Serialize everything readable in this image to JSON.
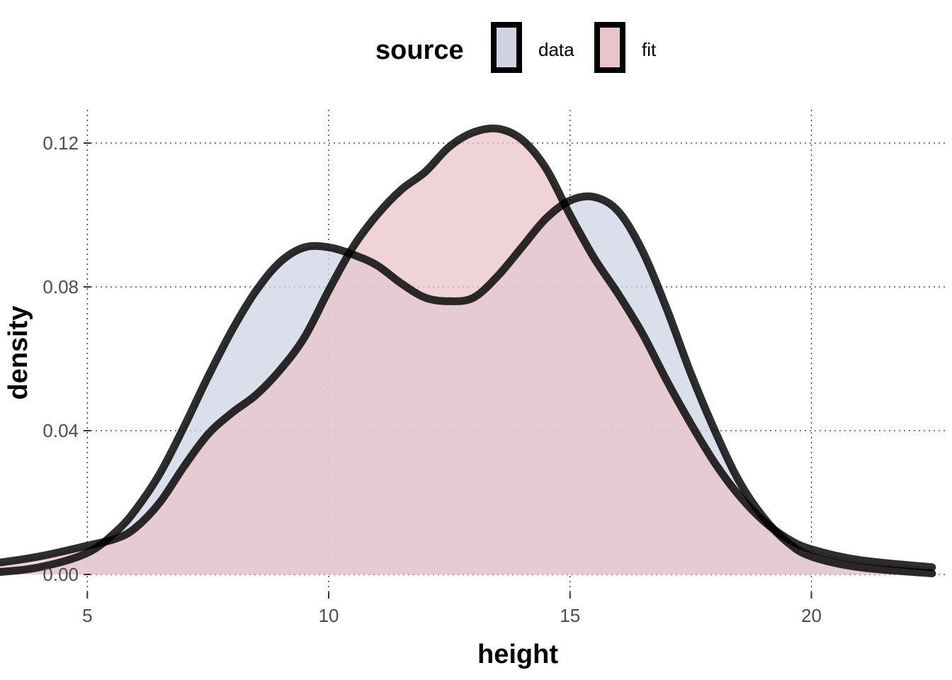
{
  "chart_data": {
    "type": "area",
    "xlabel": "height",
    "ylabel": "density",
    "xlim": [
      2.2,
      22.5
    ],
    "ylim": [
      0,
      0.124
    ],
    "x_ticks": [
      5,
      10,
      15,
      20
    ],
    "x_tick_labels": [
      "5",
      "10",
      "15",
      "20"
    ],
    "y_ticks": [
      0,
      0.04,
      0.08,
      0.12
    ],
    "y_tick_labels": [
      "0.00",
      "0.04",
      "0.08",
      "0.12"
    ],
    "grid": true,
    "legend": {
      "title": "source",
      "placement": "top"
    },
    "series": [
      {
        "name": "data",
        "fill": "#cfd3e4",
        "x": [
          2.2,
          3.0,
          4.0,
          5.0,
          5.6,
          6.0,
          6.5,
          7.0,
          7.5,
          8.0,
          8.5,
          9.0,
          9.5,
          10.0,
          10.5,
          11.0,
          11.5,
          12.0,
          12.5,
          13.0,
          13.5,
          14.0,
          14.5,
          15.0,
          15.5,
          16.0,
          16.5,
          17.0,
          17.5,
          18.0,
          18.5,
          19.0,
          19.5,
          20.0,
          21.0,
          22.5
        ],
        "y": [
          0.0,
          0.0005,
          0.002,
          0.006,
          0.012,
          0.018,
          0.028,
          0.041,
          0.055,
          0.068,
          0.079,
          0.087,
          0.091,
          0.091,
          0.089,
          0.086,
          0.081,
          0.077,
          0.076,
          0.077,
          0.083,
          0.091,
          0.099,
          0.104,
          0.105,
          0.101,
          0.09,
          0.074,
          0.056,
          0.04,
          0.026,
          0.016,
          0.009,
          0.005,
          0.002,
          0.0003
        ]
      },
      {
        "name": "fit",
        "fill": "#e9c4c9",
        "x": [
          2.2,
          3.0,
          4.0,
          5.0,
          5.6,
          6.0,
          6.5,
          7.0,
          7.5,
          8.0,
          8.5,
          9.0,
          9.5,
          10.0,
          10.5,
          11.0,
          11.5,
          12.0,
          12.5,
          13.0,
          13.5,
          14.0,
          14.5,
          15.0,
          15.5,
          16.0,
          16.5,
          17.0,
          17.5,
          18.0,
          18.5,
          19.0,
          19.5,
          20.0,
          21.0,
          22.5
        ],
        "y": [
          0.002,
          0.003,
          0.005,
          0.008,
          0.01,
          0.013,
          0.02,
          0.03,
          0.039,
          0.045,
          0.05,
          0.057,
          0.066,
          0.079,
          0.091,
          0.1,
          0.107,
          0.112,
          0.119,
          0.123,
          0.124,
          0.121,
          0.113,
          0.1,
          0.088,
          0.078,
          0.067,
          0.054,
          0.042,
          0.031,
          0.022,
          0.015,
          0.01,
          0.007,
          0.004,
          0.002
        ]
      }
    ]
  }
}
